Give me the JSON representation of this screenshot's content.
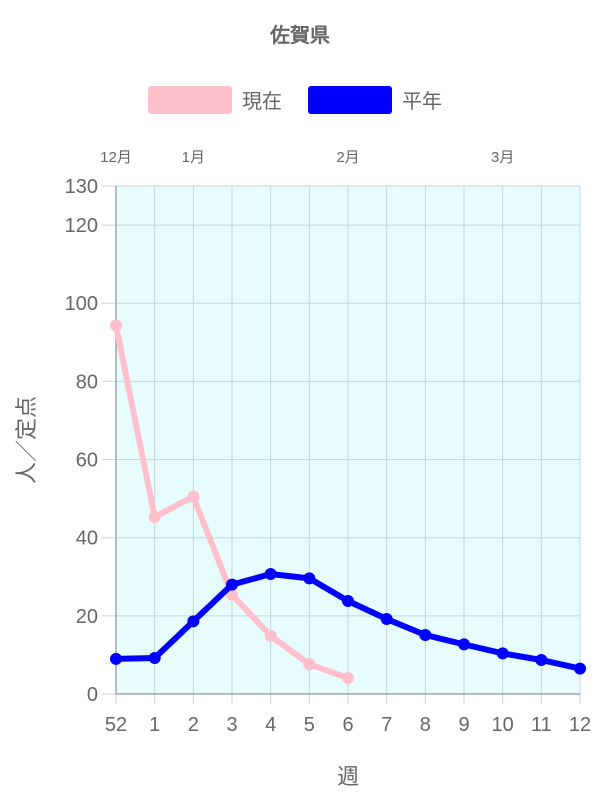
{
  "chart_data": {
    "type": "line",
    "title": "佐賀県",
    "xlabel": "週",
    "ylabel": "人／定点",
    "categories": [
      "52",
      "1",
      "2",
      "3",
      "4",
      "5",
      "6",
      "7",
      "8",
      "9",
      "10",
      "11",
      "12"
    ],
    "month_labels": [
      {
        "label": "12月",
        "at": 0
      },
      {
        "label": "1月",
        "at": 2
      },
      {
        "label": "2月",
        "at": 6
      },
      {
        "label": "3月",
        "at": 10
      }
    ],
    "yticks": [
      0,
      20,
      40,
      60,
      80,
      100,
      120,
      130
    ],
    "ylim": [
      0,
      130
    ],
    "grid": true,
    "legend_position": "top",
    "plot_background": "#e6fcfd",
    "series": [
      {
        "name": "現在",
        "color": "#ffc0cb",
        "values": [
          94.3,
          45.3,
          50.5,
          25.4,
          14.9,
          7.6,
          4.1,
          null,
          null,
          null,
          null,
          null,
          null
        ]
      },
      {
        "name": "平年",
        "color": "#0000ff",
        "values": [
          9.0,
          9.2,
          18.6,
          28.0,
          30.7,
          29.6,
          23.8,
          19.2,
          15.1,
          12.7,
          10.4,
          8.7,
          6.5
        ]
      }
    ]
  }
}
